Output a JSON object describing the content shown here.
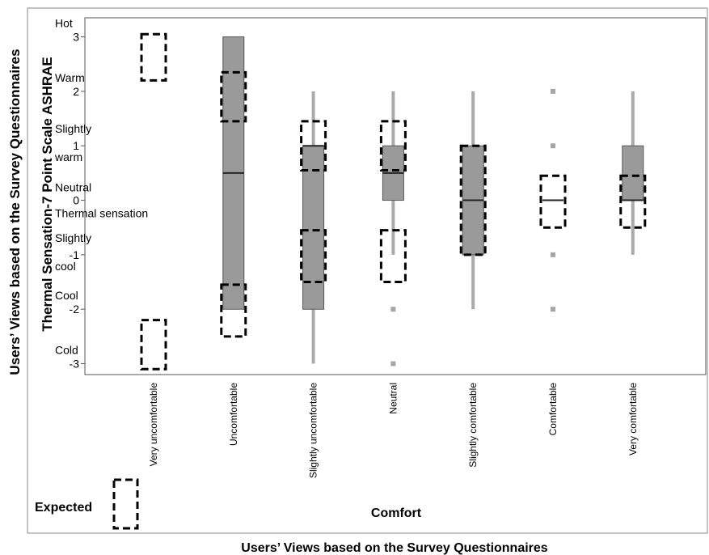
{
  "chart_data": {
    "type": "boxplot",
    "outer_xlabel": "Users’ Views based on the Survey Questionnaires",
    "outer_ylabel": "Users’ Views based on the Survey Questionnaires",
    "xlabel": "Comfort",
    "ylabel": "Thermal Sensation-7 Point Scale ASHRAE",
    "ylim": [
      -3.2,
      3.35
    ],
    "yticks": [
      3,
      2,
      1,
      0,
      -1,
      -2,
      -3
    ],
    "scale_labels": [
      {
        "value": 3,
        "lines": [
          "Hot"
        ]
      },
      {
        "value": 2,
        "lines": [
          "Warm"
        ]
      },
      {
        "value": 1,
        "lines": [
          "Slightly",
          "warm"
        ]
      },
      {
        "value": 0,
        "lines": [
          "Neutral",
          "Thermal sensation"
        ]
      },
      {
        "value": -1,
        "lines": [
          "Slightly",
          "cool"
        ]
      },
      {
        "value": -2,
        "lines": [
          "Cool"
        ]
      },
      {
        "value": -3,
        "lines": [
          "Cold"
        ]
      }
    ],
    "categories": [
      "Very uncomfortable",
      "Uncomfortable",
      "Slightly uncomfortable",
      "Neutral",
      "Slightly comfortable",
      "Comfortable",
      "Very comfortable"
    ],
    "boxes": [
      {
        "category": "Very uncomfortable",
        "has_box": false
      },
      {
        "category": "Uncomfortable",
        "whisker_low": -2,
        "q1": -2,
        "median": 0.5,
        "q3": 3,
        "whisker_high": 3,
        "outliers": []
      },
      {
        "category": "Slightly uncomfortable",
        "whisker_low": -3,
        "q1": -2,
        "median": 1,
        "q3": 1,
        "whisker_high": 2,
        "outliers": []
      },
      {
        "category": "Neutral",
        "whisker_low": -1,
        "q1": 0,
        "median": 0.5,
        "q3": 1,
        "whisker_high": 2,
        "outliers": [
          -2,
          -3
        ]
      },
      {
        "category": "Slightly comfortable",
        "whisker_low": -2,
        "q1": -1,
        "median": 0,
        "q3": 1,
        "whisker_high": 2,
        "outliers": []
      },
      {
        "category": "Comfortable",
        "whisker_low": 0,
        "q1": 0,
        "median": 0,
        "q3": 0,
        "whisker_high": 0,
        "outliers": [
          2,
          1,
          -1,
          -2
        ]
      },
      {
        "category": "Very comfortable",
        "whisker_low": -1,
        "q1": 0,
        "median": 0,
        "q3": 1,
        "whisker_high": 2,
        "outliers": []
      }
    ],
    "expected_regions": [
      {
        "category": "Very uncomfortable",
        "ranges": [
          [
            2.2,
            3.05
          ],
          [
            -3.1,
            -2.2
          ]
        ]
      },
      {
        "category": "Uncomfortable",
        "ranges": [
          [
            1.45,
            2.35
          ],
          [
            -2.5,
            -1.55
          ]
        ]
      },
      {
        "category": "Slightly uncomfortable",
        "ranges": [
          [
            0.55,
            1.45
          ],
          [
            -1.5,
            -0.55
          ]
        ]
      },
      {
        "category": "Neutral",
        "ranges": [
          [
            0.55,
            1.45
          ],
          [
            -1.5,
            -0.55
          ]
        ]
      },
      {
        "category": "Slightly comfortable",
        "ranges": [
          [
            -1,
            1
          ]
        ]
      },
      {
        "category": "Comfortable",
        "ranges": [
          [
            -0.5,
            0.45
          ]
        ]
      },
      {
        "category": "Very comfortable",
        "ranges": [
          [
            -0.5,
            0.45
          ]
        ]
      }
    ],
    "legend": {
      "label": "Expected",
      "placement": "bottom-left"
    },
    "colors": {
      "box_fill": "#9a9a9a",
      "box_stroke": "#555555",
      "whisker": "#aaaaaa",
      "outlier": "#a6a6a6",
      "expected": "#000000"
    }
  }
}
